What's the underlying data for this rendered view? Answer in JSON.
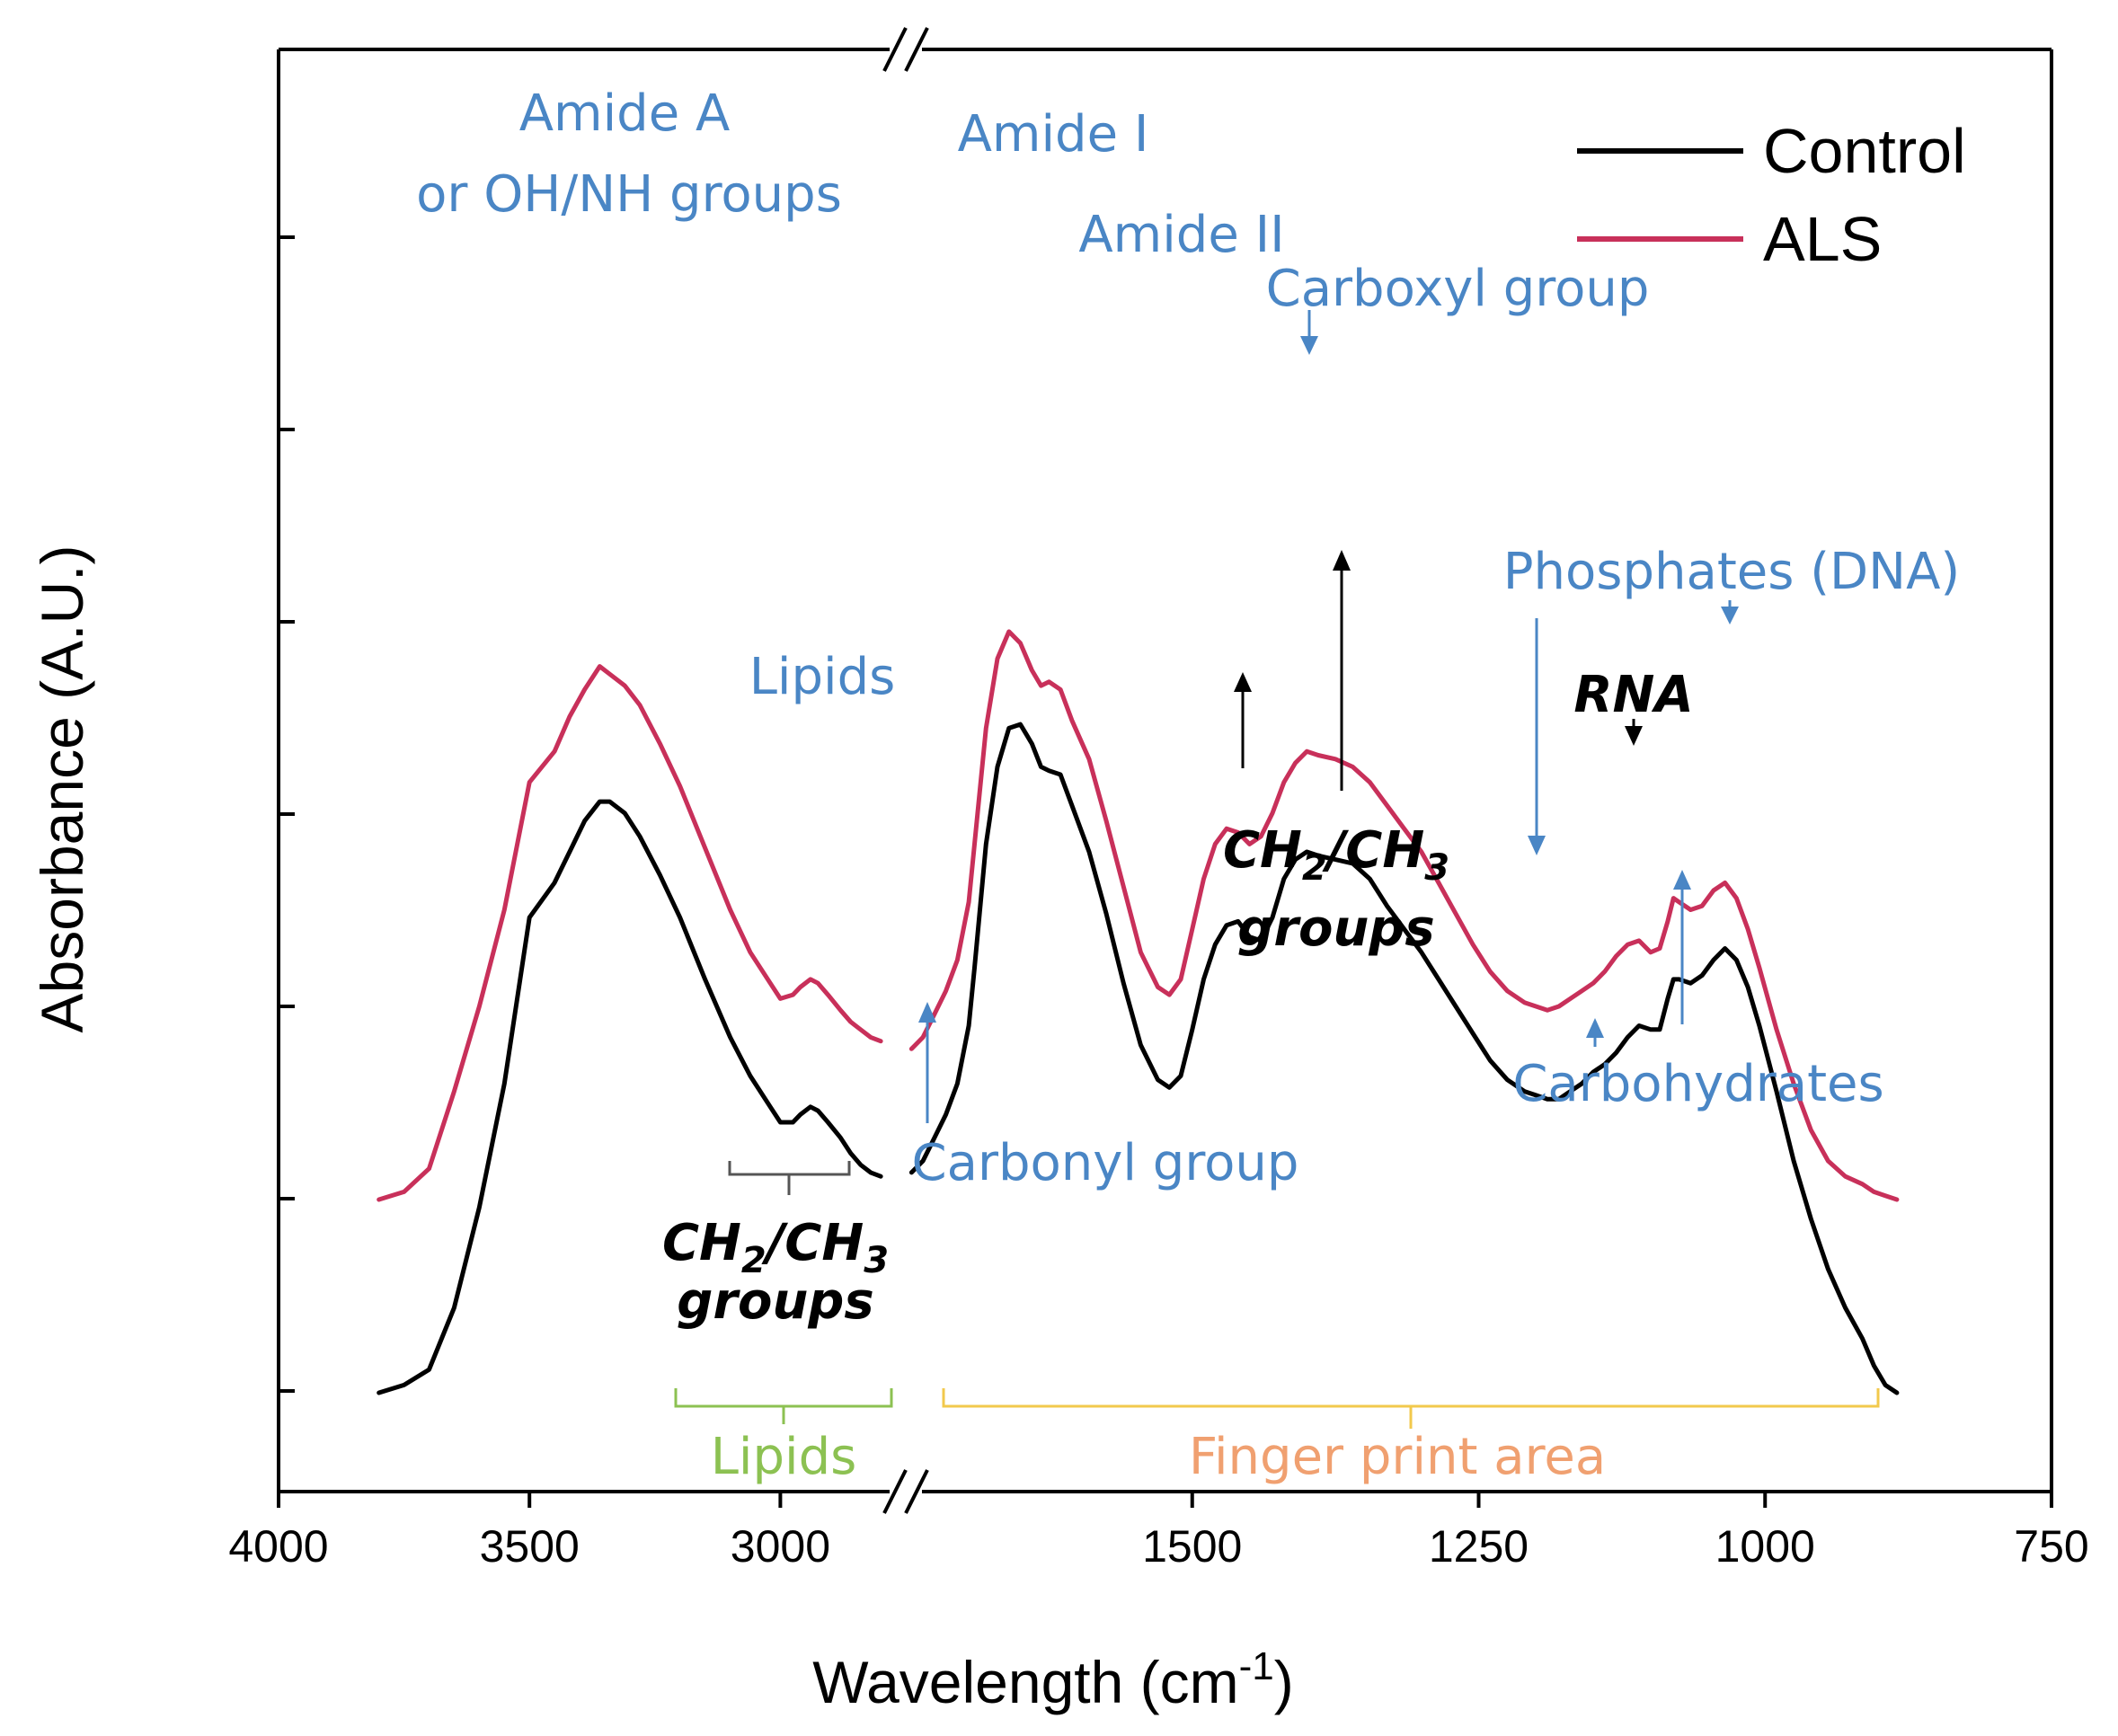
{
  "chart_data": {
    "type": "line",
    "xlabel": "Wavelength (cm",
    "xlabel_sup": "-1",
    "xlabel_close": ")",
    "ylabel": "Absorbance (A.U.)",
    "x_reversed": true,
    "x_axis_break": true,
    "y_tick_labels_shown": false,
    "grid": false,
    "legend": "top-right",
    "x_segments": [
      {
        "range": [
          4000,
          2750
        ],
        "ticks": [
          4000,
          3500,
          3000
        ]
      },
      {
        "range": [
          1750,
          750
        ],
        "ticks": [
          1500,
          1250,
          1000,
          750
        ]
      }
    ],
    "tick_labels": [
      "4000",
      "3500",
      "3000",
      "1500",
      "1250",
      "1000",
      "750"
    ],
    "series": [
      {
        "name": "Control",
        "color": "#000000",
        "segments": [
          [
            [
              3800,
              0.0
            ],
            [
              3750,
              0.02
            ],
            [
              3700,
              0.06
            ],
            [
              3650,
              0.22
            ],
            [
              3600,
              0.48
            ],
            [
              3550,
              0.8
            ],
            [
              3500,
              1.23
            ],
            [
              3450,
              1.32
            ],
            [
              3420,
              1.4
            ],
            [
              3390,
              1.48
            ],
            [
              3360,
              1.53
            ],
            [
              3340,
              1.53
            ],
            [
              3310,
              1.5
            ],
            [
              3280,
              1.44
            ],
            [
              3240,
              1.34
            ],
            [
              3200,
              1.23
            ],
            [
              3150,
              1.07
            ],
            [
              3100,
              0.92
            ],
            [
              3060,
              0.82
            ],
            [
              3020,
              0.74
            ],
            [
              3000,
              0.7
            ],
            [
              2975,
              0.7
            ],
            [
              2960,
              0.72
            ],
            [
              2940,
              0.74
            ],
            [
              2925,
              0.73
            ],
            [
              2905,
              0.7
            ],
            [
              2880,
              0.66
            ],
            [
              2860,
              0.62
            ],
            [
              2840,
              0.59
            ],
            [
              2820,
              0.57
            ],
            [
              2800,
              0.56
            ]
          ],
          [
            [
              1745,
              0.57
            ],
            [
              1735,
              0.6
            ],
            [
              1725,
              0.66
            ],
            [
              1715,
              0.72
            ],
            [
              1705,
              0.8
            ],
            [
              1695,
              0.95
            ],
            [
              1690,
              1.1
            ],
            [
              1680,
              1.42
            ],
            [
              1670,
              1.62
            ],
            [
              1660,
              1.72
            ],
            [
              1650,
              1.73
            ],
            [
              1640,
              1.68
            ],
            [
              1632,
              1.62
            ],
            [
              1625,
              1.61
            ],
            [
              1615,
              1.6
            ],
            [
              1605,
              1.52
            ],
            [
              1590,
              1.4
            ],
            [
              1575,
              1.24
            ],
            [
              1560,
              1.06
            ],
            [
              1545,
              0.9
            ],
            [
              1530,
              0.81
            ],
            [
              1520,
              0.79
            ],
            [
              1510,
              0.82
            ],
            [
              1500,
              0.94
            ],
            [
              1490,
              1.07
            ],
            [
              1480,
              1.16
            ],
            [
              1470,
              1.21
            ],
            [
              1460,
              1.22
            ],
            [
              1450,
              1.18
            ],
            [
              1440,
              1.17
            ],
            [
              1430,
              1.23
            ],
            [
              1420,
              1.33
            ],
            [
              1410,
              1.38
            ],
            [
              1400,
              1.4
            ],
            [
              1390,
              1.39
            ],
            [
              1375,
              1.38
            ],
            [
              1360,
              1.37
            ],
            [
              1345,
              1.33
            ],
            [
              1330,
              1.26
            ],
            [
              1315,
              1.2
            ],
            [
              1300,
              1.14
            ],
            [
              1285,
              1.07
            ],
            [
              1270,
              1.0
            ],
            [
              1255,
              0.93
            ],
            [
              1240,
              0.86
            ],
            [
              1225,
              0.81
            ],
            [
              1210,
              0.78
            ],
            [
              1200,
              0.77
            ],
            [
              1190,
              0.76
            ],
            [
              1180,
              0.76
            ],
            [
              1170,
              0.78
            ],
            [
              1160,
              0.8
            ],
            [
              1150,
              0.83
            ],
            [
              1140,
              0.85
            ],
            [
              1130,
              0.88
            ],
            [
              1120,
              0.92
            ],
            [
              1110,
              0.95
            ],
            [
              1100,
              0.94
            ],
            [
              1092,
              0.94
            ],
            [
              1085,
              1.02
            ],
            [
              1080,
              1.07
            ],
            [
              1075,
              1.07
            ],
            [
              1065,
              1.06
            ],
            [
              1055,
              1.08
            ],
            [
              1045,
              1.12
            ],
            [
              1035,
              1.15
            ],
            [
              1025,
              1.12
            ],
            [
              1015,
              1.05
            ],
            [
              1005,
              0.95
            ],
            [
              990,
              0.78
            ],
            [
              975,
              0.6
            ],
            [
              960,
              0.45
            ],
            [
              945,
              0.32
            ],
            [
              930,
              0.22
            ],
            [
              915,
              0.14
            ],
            [
              905,
              0.07
            ],
            [
              895,
              0.02
            ],
            [
              885,
              0.0
            ]
          ]
        ]
      },
      {
        "name": "ALS",
        "color": "#c8305a",
        "segments": [
          [
            [
              3800,
              0.5
            ],
            [
              3750,
              0.52
            ],
            [
              3700,
              0.58
            ],
            [
              3650,
              0.78
            ],
            [
              3600,
              1.0
            ],
            [
              3550,
              1.25
            ],
            [
              3500,
              1.58
            ],
            [
              3450,
              1.66
            ],
            [
              3420,
              1.75
            ],
            [
              3390,
              1.82
            ],
            [
              3360,
              1.88
            ],
            [
              3340,
              1.86
            ],
            [
              3310,
              1.83
            ],
            [
              3280,
              1.78
            ],
            [
              3240,
              1.68
            ],
            [
              3200,
              1.57
            ],
            [
              3150,
              1.41
            ],
            [
              3100,
              1.25
            ],
            [
              3060,
              1.14
            ],
            [
              3020,
              1.06
            ],
            [
              3000,
              1.02
            ],
            [
              2975,
              1.03
            ],
            [
              2960,
              1.05
            ],
            [
              2940,
              1.07
            ],
            [
              2925,
              1.06
            ],
            [
              2905,
              1.03
            ],
            [
              2880,
              0.99
            ],
            [
              2860,
              0.96
            ],
            [
              2840,
              0.94
            ],
            [
              2820,
              0.92
            ],
            [
              2800,
              0.91
            ]
          ],
          [
            [
              1745,
              0.89
            ],
            [
              1735,
              0.92
            ],
            [
              1725,
              0.98
            ],
            [
              1715,
              1.04
            ],
            [
              1705,
              1.12
            ],
            [
              1695,
              1.27
            ],
            [
              1690,
              1.42
            ],
            [
              1680,
              1.72
            ],
            [
              1670,
              1.9
            ],
            [
              1660,
              1.97
            ],
            [
              1650,
              1.94
            ],
            [
              1640,
              1.87
            ],
            [
              1632,
              1.83
            ],
            [
              1625,
              1.84
            ],
            [
              1615,
              1.82
            ],
            [
              1605,
              1.74
            ],
            [
              1590,
              1.64
            ],
            [
              1575,
              1.48
            ],
            [
              1560,
              1.31
            ],
            [
              1545,
              1.14
            ],
            [
              1530,
              1.05
            ],
            [
              1520,
              1.03
            ],
            [
              1510,
              1.07
            ],
            [
              1500,
              1.2
            ],
            [
              1490,
              1.33
            ],
            [
              1480,
              1.42
            ],
            [
              1470,
              1.46
            ],
            [
              1460,
              1.45
            ],
            [
              1450,
              1.42
            ],
            [
              1440,
              1.44
            ],
            [
              1430,
              1.5
            ],
            [
              1420,
              1.58
            ],
            [
              1410,
              1.63
            ],
            [
              1400,
              1.66
            ],
            [
              1390,
              1.65
            ],
            [
              1375,
              1.64
            ],
            [
              1360,
              1.62
            ],
            [
              1345,
              1.58
            ],
            [
              1330,
              1.52
            ],
            [
              1315,
              1.46
            ],
            [
              1300,
              1.4
            ],
            [
              1285,
              1.32
            ],
            [
              1270,
              1.24
            ],
            [
              1255,
              1.16
            ],
            [
              1240,
              1.09
            ],
            [
              1225,
              1.04
            ],
            [
              1210,
              1.01
            ],
            [
              1200,
              1.0
            ],
            [
              1190,
              0.99
            ],
            [
              1180,
              1.0
            ],
            [
              1170,
              1.02
            ],
            [
              1160,
              1.04
            ],
            [
              1150,
              1.06
            ],
            [
              1140,
              1.09
            ],
            [
              1130,
              1.13
            ],
            [
              1120,
              1.16
            ],
            [
              1110,
              1.17
            ],
            [
              1100,
              1.14
            ],
            [
              1092,
              1.15
            ],
            [
              1085,
              1.22
            ],
            [
              1080,
              1.28
            ],
            [
              1075,
              1.27
            ],
            [
              1065,
              1.25
            ],
            [
              1055,
              1.26
            ],
            [
              1045,
              1.3
            ],
            [
              1035,
              1.32
            ],
            [
              1025,
              1.28
            ],
            [
              1015,
              1.2
            ],
            [
              1005,
              1.1
            ],
            [
              990,
              0.94
            ],
            [
              975,
              0.8
            ],
            [
              960,
              0.68
            ],
            [
              945,
              0.6
            ],
            [
              930,
              0.56
            ],
            [
              915,
              0.54
            ],
            [
              905,
              0.52
            ],
            [
              895,
              0.51
            ],
            [
              885,
              0.5
            ]
          ]
        ]
      }
    ],
    "annotations": {
      "amide_a_line1": "Amide A",
      "amide_a_line2": "or OH/NH groups",
      "amide_i": "Amide I",
      "amide_ii": "Amide II",
      "carboxyl": "Carboxyl group",
      "lipids_top": "Lipids",
      "phosphates": "Phosphates (DNA)",
      "rna": "RNA",
      "ch_groups_right_1": "CH",
      "ch_groups_right_sub1": "2",
      "ch_groups_right_mid": "/CH",
      "ch_groups_right_sub2": "3",
      "ch_groups_right_2": "groups",
      "ch_groups_left_1": "CH",
      "ch_groups_left_sub1": "2",
      "ch_groups_left_mid": "/CH",
      "ch_groups_left_sub2": "3",
      "ch_groups_left_2": "groups",
      "carbonyl": "Carbonyl group",
      "carbohydrates": "Carbohydrates",
      "lipids_bottom": "Lipids",
      "fingerprint": "Finger print area"
    }
  }
}
